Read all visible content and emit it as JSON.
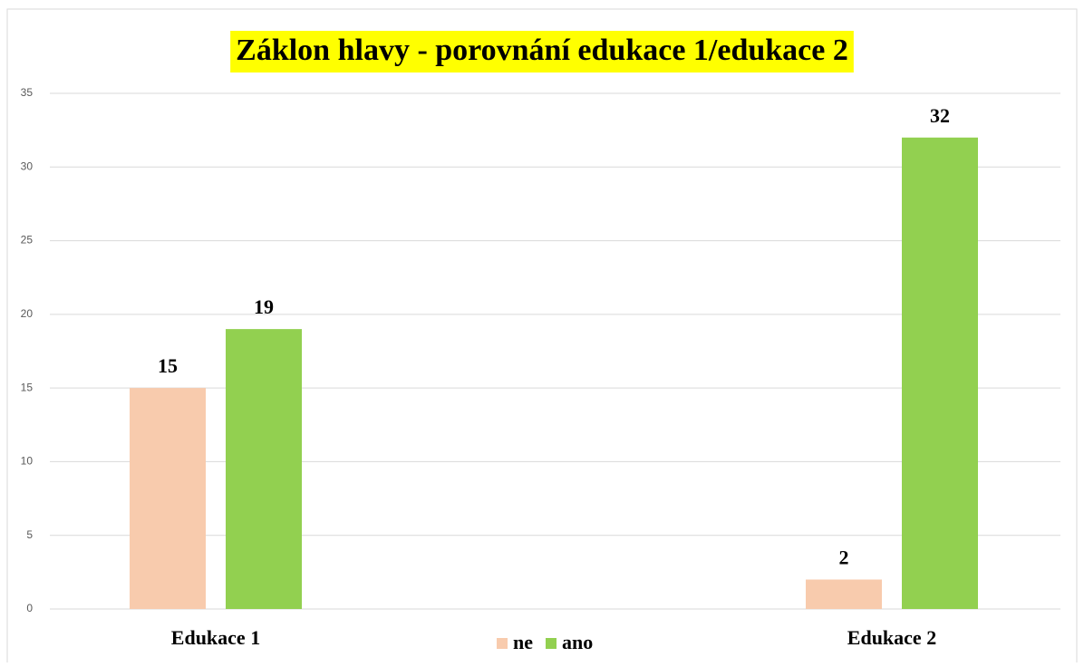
{
  "chart_data": {
    "type": "bar",
    "title": "Záklon hlavy - porovnání edukace 1/edukace 2",
    "categories": [
      "Edukace 1",
      "Edukace 2"
    ],
    "series": [
      {
        "name": "ne",
        "color": "#f8cbad",
        "values": [
          15,
          2
        ]
      },
      {
        "name": "ano",
        "color": "#92d050",
        "values": [
          19,
          32
        ]
      }
    ],
    "ylim": [
      0,
      35
    ],
    "yticks": [
      0,
      5,
      10,
      15,
      20,
      25,
      30,
      35
    ],
    "grid": true,
    "legend": "bottom"
  }
}
